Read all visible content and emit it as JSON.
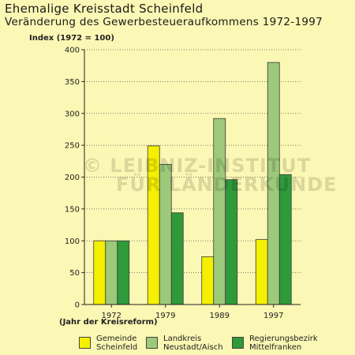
{
  "title": "Ehemalige Kreisstadt Scheinfeld",
  "subtitle": "Veränderung des Gewerbesteueraufkommens 1972-1997",
  "watermark": {
    "line1": "© LEIBNIZ-INSTITUT",
    "line2": "FÜR LÄNDERKUNDE"
  },
  "colors": {
    "background": "#fbf7b4",
    "gemeinde": "#f5f000",
    "landkreis": "#9dca7a",
    "regierungsbezirk": "#2e9a3a"
  },
  "chart_data": {
    "type": "bar",
    "ylabel": "Index (1972 = 100)",
    "xlabel": "(Jahr der Kreisreform)",
    "ylim": [
      0,
      400
    ],
    "yticks": [
      0,
      50,
      100,
      150,
      200,
      250,
      300,
      350,
      400
    ],
    "grid": true,
    "legend_position": "bottom",
    "categories": [
      "1972",
      "1979",
      "1989",
      "1997"
    ],
    "series": [
      {
        "name": "Gemeinde Scheinfeld",
        "name_lines": [
          "Gemeinde",
          "Scheinfeld"
        ],
        "color": "#f5f000",
        "values": [
          100,
          249,
          75,
          102
        ]
      },
      {
        "name": "Landkreis Neustadt/Aisch",
        "name_lines": [
          "Landkreis",
          "Neustadt/Aisch"
        ],
        "color": "#9dca7a",
        "values": [
          100,
          220,
          292,
          380
        ]
      },
      {
        "name": "Regierungsbezirk Mittelfranken",
        "name_lines": [
          "Regierungsbezirk",
          "Mittelfranken"
        ],
        "color": "#2e9a3a",
        "values": [
          100,
          144,
          196,
          204
        ]
      }
    ]
  }
}
